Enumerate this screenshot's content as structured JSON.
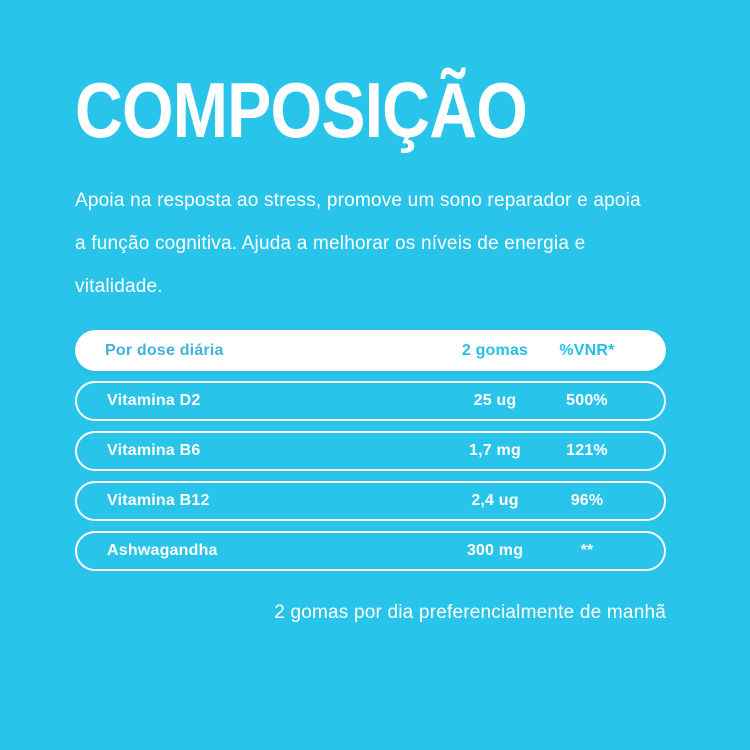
{
  "colors": {
    "background": "#29C4E9",
    "text": "#FFFFFF",
    "header_pill_bg": "#FFFFFF",
    "header_label": "#43B1DB",
    "header_value": "#27BEE7"
  },
  "title": "COMPOSIÇÃO",
  "description": {
    "lines": [
      "Apoia na resposta ao stress, promove um sono reparador e apoia",
      "a função cognitiva. Ajuda a melhorar os níveis de energia e",
      "vitalidade."
    ]
  },
  "table": {
    "header": {
      "label": "Por dose diária",
      "amount": "2 gomas",
      "vnr": "%VNR*"
    },
    "rows": [
      {
        "name": "Vitamina D2",
        "amount": "25 ug",
        "vnr": "500%"
      },
      {
        "name": "Vitamina B6",
        "amount": "1,7 mg",
        "vnr": "121%"
      },
      {
        "name": "Vitamina B12",
        "amount": "2,4 ug",
        "vnr": "96%"
      },
      {
        "name": "Ashwagandha",
        "amount": "300 mg",
        "vnr": "**"
      }
    ]
  },
  "footer": {
    "note": "2 gomas por dia preferencialmente de manhã"
  }
}
